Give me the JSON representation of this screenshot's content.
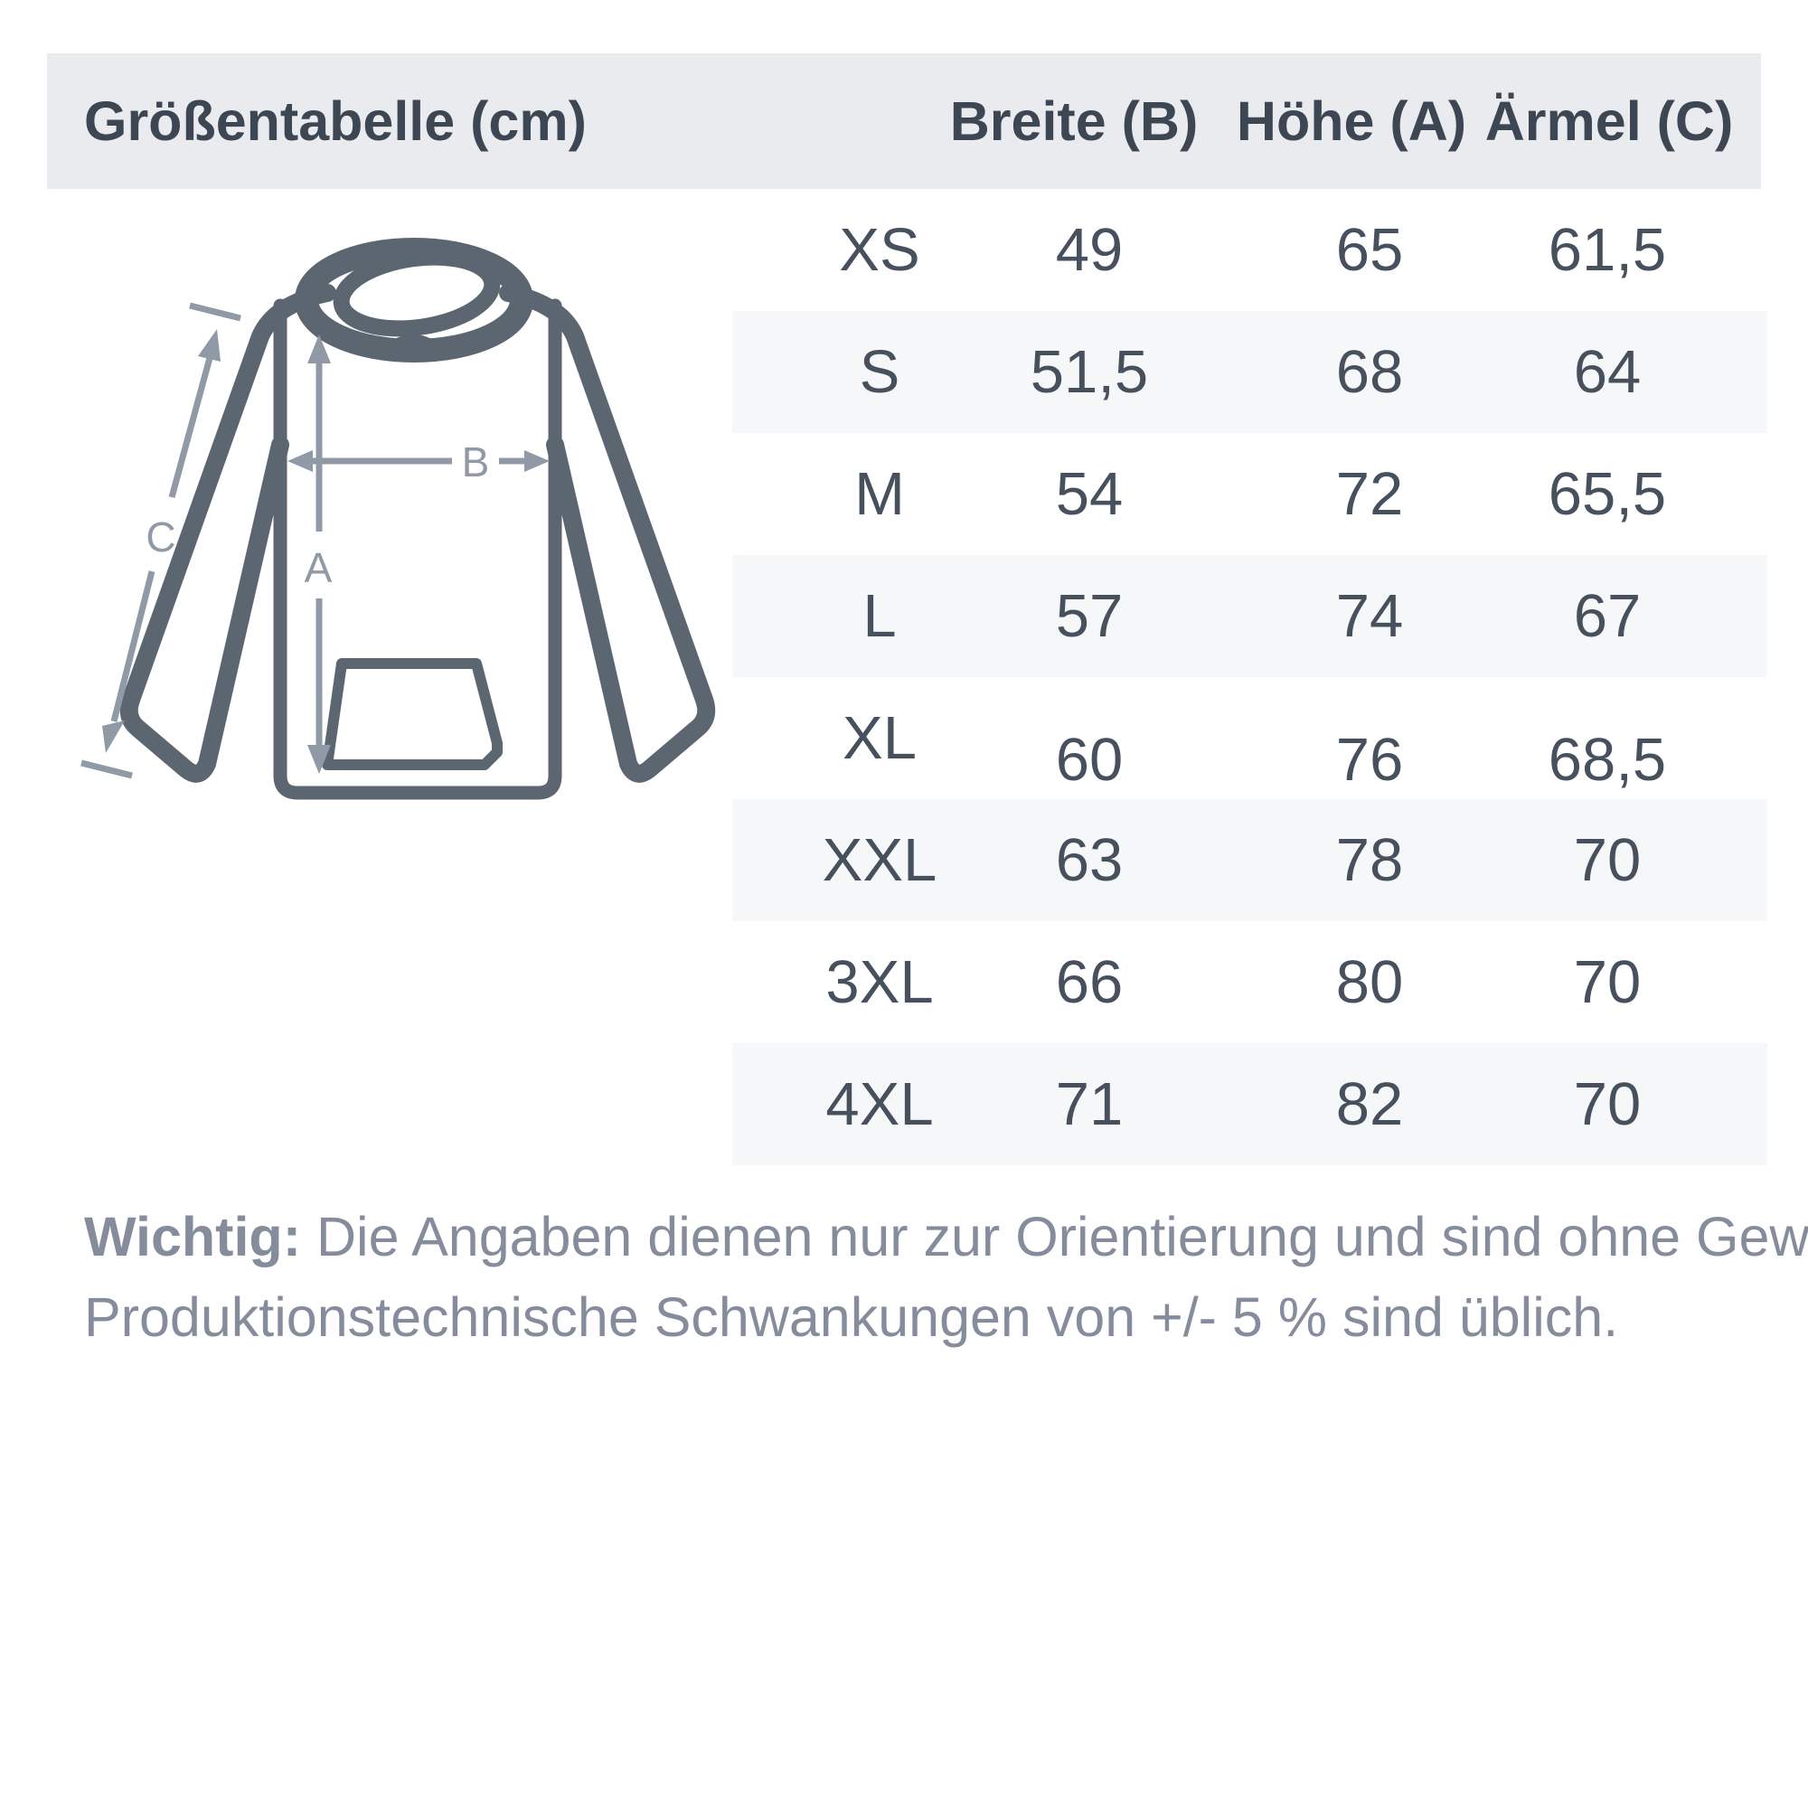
{
  "header": {
    "title": "Größentabelle (cm)",
    "columns": [
      "Breite (B)",
      "Höhe (A)",
      "Ärmel (C)"
    ]
  },
  "diagram": {
    "type": "hoodie-measurement-sketch",
    "labels": {
      "a": "A",
      "b": "B",
      "c": "C"
    }
  },
  "table": {
    "rows": [
      {
        "size": "XS",
        "breite": "49",
        "hoehe": "65",
        "aermel": "61,5"
      },
      {
        "size": "S",
        "breite": "51,5",
        "hoehe": "68",
        "aermel": "64"
      },
      {
        "size": "M",
        "breite": "54",
        "hoehe": "72",
        "aermel": "65,5"
      },
      {
        "size": "L",
        "breite": "57",
        "hoehe": "74",
        "aermel": "67"
      },
      {
        "size": "XL",
        "breite": "60",
        "hoehe": "76",
        "aermel": "68,5",
        "values_offset": true
      },
      {
        "size": "XXL",
        "breite": "63",
        "hoehe": "78",
        "aermel": "70"
      },
      {
        "size": "3XL",
        "breite": "66",
        "hoehe": "80",
        "aermel": "70"
      },
      {
        "size": "4XL",
        "breite": "71",
        "hoehe": "82",
        "aermel": "70"
      }
    ]
  },
  "footer": {
    "label": "Wichtig:",
    "line1": "Die Angaben dienen nur zur Orientierung und sind ohne Gewähr.",
    "line2": "Produktionstechnische Schwankungen von +/- 5 % sind üblich."
  },
  "colors": {
    "header_bg": "#e9ebef",
    "row_alt_bg": "#f6f7f9",
    "heading_text": "#3d4653",
    "cell_text": "#47505d",
    "footer_text": "#858d9d",
    "drawing": "#5c6671",
    "measure": "#9099a6"
  }
}
